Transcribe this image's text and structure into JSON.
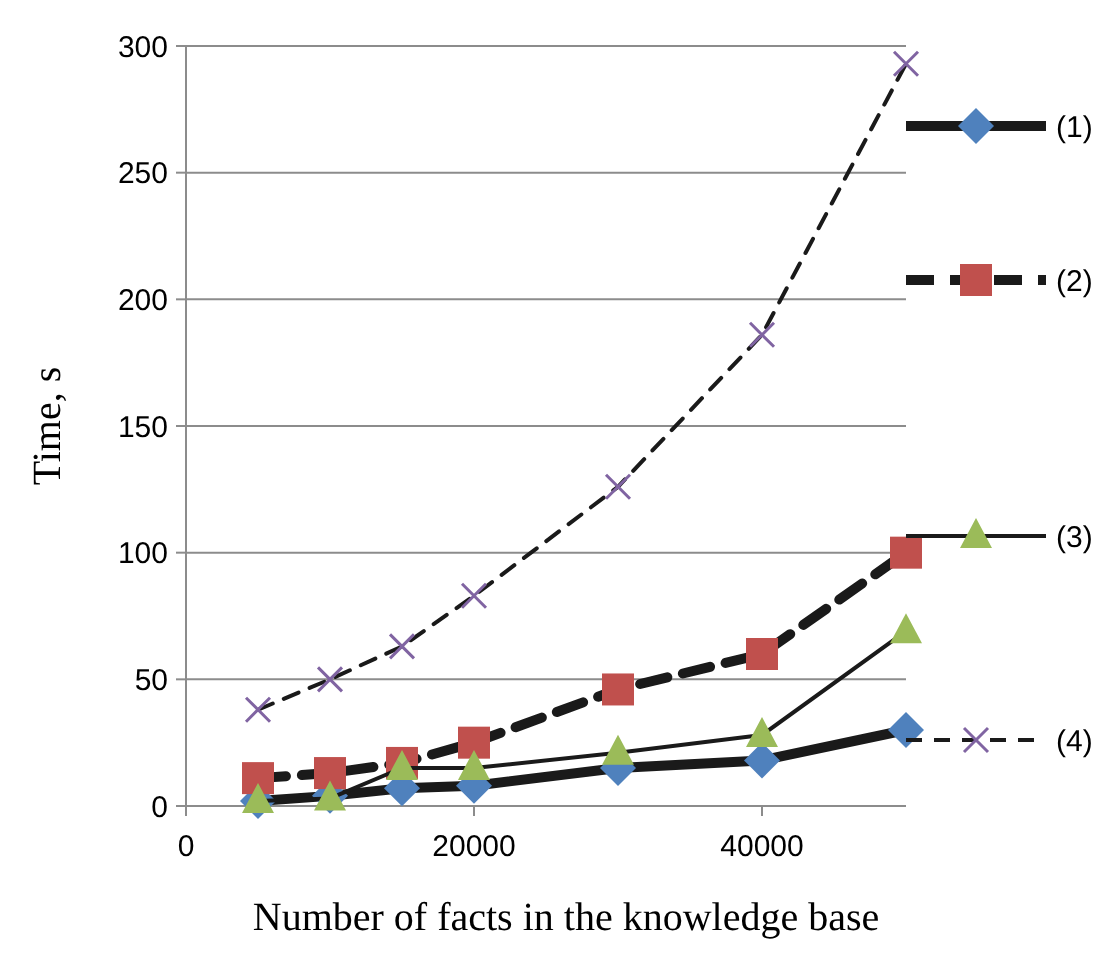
{
  "chart_data": {
    "type": "line",
    "xlabel": "Number of facts in the knowledge base",
    "ylabel": "Time, s",
    "x": [
      5000,
      10000,
      15000,
      20000,
      30000,
      40000,
      50000
    ],
    "series": [
      {
        "name": "(1)",
        "color": "#4f81bd",
        "marker": "diamond",
        "line_style": "solid",
        "values": [
          2,
          4,
          7,
          8,
          15,
          18,
          30
        ]
      },
      {
        "name": "(2)",
        "color": "#c0504d",
        "marker": "square",
        "line_style": "dashed",
        "values": [
          11,
          13,
          17,
          25,
          46,
          60,
          100
        ]
      },
      {
        "name": "(3)",
        "color": "#9bbb59",
        "marker": "triangle",
        "line_style": "solid",
        "values": [
          2,
          3,
          15,
          15,
          21,
          28,
          69
        ]
      },
      {
        "name": "(4)",
        "color": "#8064a2",
        "marker": "cross",
        "line_style": "dashed",
        "values": [
          38,
          50,
          63,
          83,
          126,
          186,
          293
        ]
      }
    ],
    "xlim": [
      0,
      50000
    ],
    "xticks": [
      0,
      20000,
      40000
    ],
    "ylim": [
      0,
      300
    ],
    "yticks": [
      0,
      50,
      100,
      150,
      200,
      250,
      300
    ],
    "grid": "y",
    "legend": "right"
  }
}
